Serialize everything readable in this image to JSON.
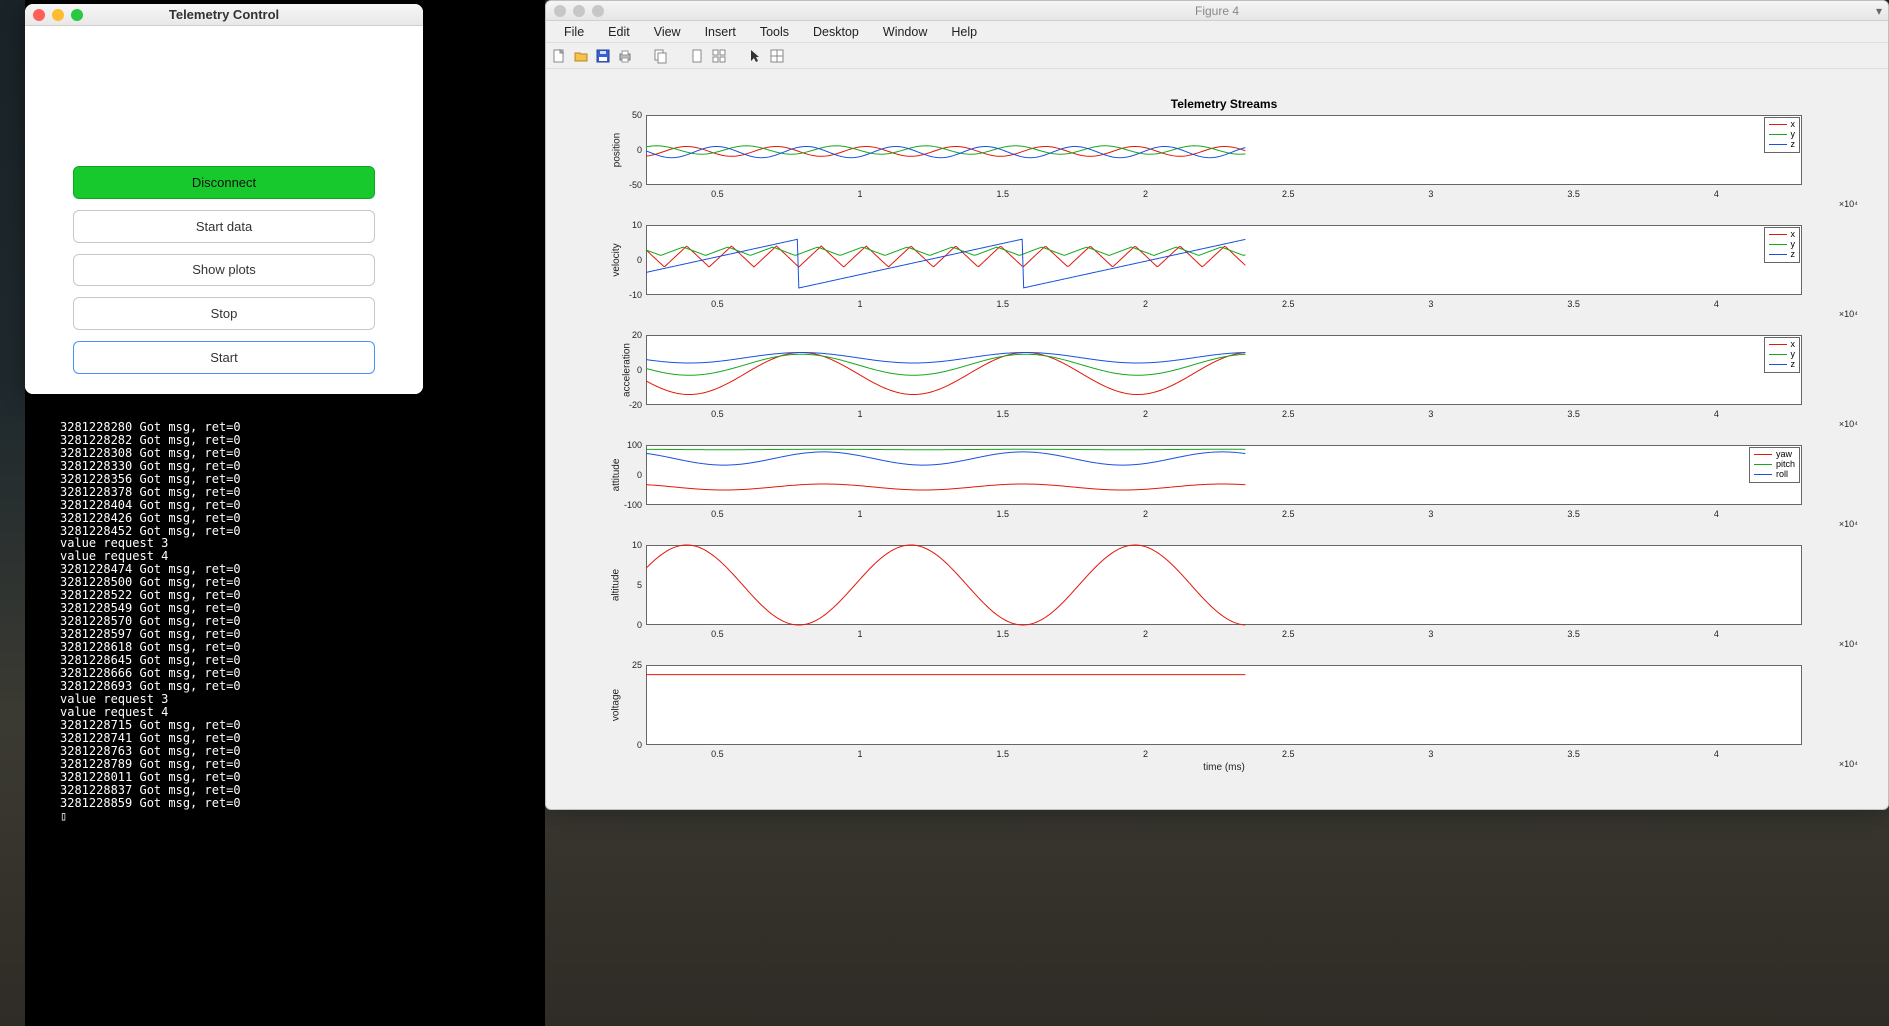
{
  "desktop": {
    "bg_top": "#1a2328",
    "bg_bottom": "#2f2b26"
  },
  "terminal": {
    "lines": [
      "3281228280 Got msg, ret=0",
      "3281228282 Got msg, ret=0",
      "3281228308 Got msg, ret=0",
      "3281228330 Got msg, ret=0",
      "3281228356 Got msg, ret=0",
      "3281228378 Got msg, ret=0",
      "3281228404 Got msg, ret=0",
      "3281228426 Got msg, ret=0",
      "3281228452 Got msg, ret=0",
      "value request 3",
      "value request 4",
      "3281228474 Got msg, ret=0",
      "3281228500 Got msg, ret=0",
      "3281228522 Got msg, ret=0",
      "3281228549 Got msg, ret=0",
      "3281228570 Got msg, ret=0",
      "3281228597 Got msg, ret=0",
      "3281228618 Got msg, ret=0",
      "3281228645 Got msg, ret=0",
      "3281228666 Got msg, ret=0",
      "3281228693 Got msg, ret=0",
      "value request 3",
      "value request 4",
      "3281228715 Got msg, ret=0",
      "3281228741 Got msg, ret=0",
      "3281228763 Got msg, ret=0",
      "3281228789 Got msg, ret=0",
      "3281228011 Got msg, ret=0",
      "3281228837 Got msg, ret=0",
      "3281228859 Got msg, ret=0",
      "▯"
    ]
  },
  "control": {
    "title": "Telemetry Control",
    "traffic": {
      "close": "#ff5f57",
      "min": "#febc2e",
      "max": "#28c840"
    },
    "buttons": {
      "disconnect": "Disconnect",
      "start_data": "Start data",
      "show_plots": "Show plots",
      "stop": "Stop",
      "start": "Start"
    }
  },
  "figure": {
    "title": "Figure 4",
    "menu": [
      "File",
      "Edit",
      "View",
      "Insert",
      "Tools",
      "Desktop",
      "Window",
      "Help"
    ],
    "toolbar_icons": [
      "new",
      "open",
      "save",
      "print",
      "",
      "copy",
      "",
      "page",
      "layout",
      "",
      "cursor",
      "ruler"
    ],
    "plot_title": "Telemetry Streams",
    "x_exponent": "×10⁴",
    "xlabel": "time (ms)",
    "xticks": [
      0.5,
      1,
      1.5,
      2,
      2.5,
      3,
      3.5,
      4
    ],
    "xlim": [
      0.25,
      4.3
    ],
    "data_xmax": 2.35,
    "colors": {
      "x": "#e3170a",
      "y": "#16a81a",
      "z": "#1851e0"
    },
    "subplots": [
      {
        "name": "position",
        "height": 70,
        "ylabel": "position",
        "ylim": [
          -50,
          50
        ],
        "yticks": [
          -50,
          0,
          50
        ],
        "legend": [
          [
            "x",
            "#e3170a"
          ],
          [
            "y",
            "#16a81a"
          ],
          [
            "z",
            "#1851e0"
          ]
        ],
        "series": [
          {
            "color": "#e3170a",
            "type": "sin",
            "amp": 7,
            "freq": 20,
            "phase": 0,
            "offset": -2
          },
          {
            "color": "#16a81a",
            "type": "sin",
            "amp": 6,
            "freq": 20,
            "phase": 2.1,
            "offset": 0
          },
          {
            "color": "#1851e0",
            "type": "sin",
            "amp": 8,
            "freq": 20,
            "phase": 4.2,
            "offset": -3
          }
        ]
      },
      {
        "name": "velocity",
        "height": 70,
        "ylabel": "velocity",
        "ylim": [
          -10,
          10
        ],
        "yticks": [
          -10,
          0,
          10
        ],
        "legend": [
          [
            "x",
            "#e3170a"
          ],
          [
            "y",
            "#16a81a"
          ],
          [
            "z",
            "#1851e0"
          ]
        ],
        "series": [
          {
            "color": "#e3170a",
            "type": "tri",
            "amp": 3,
            "freq": 40,
            "phase": 0,
            "offset": 1
          },
          {
            "color": "#16a81a",
            "type": "tri",
            "amp": 1.2,
            "freq": 40,
            "phase": 0.5,
            "offset": 2.5
          },
          {
            "color": "#1851e0",
            "type": "saw",
            "amp": 7,
            "freq": 8,
            "phase": 0,
            "offset": -1
          }
        ]
      },
      {
        "name": "acceleration",
        "height": 70,
        "ylabel": "acceleration",
        "ylim": [
          -20,
          20
        ],
        "yticks": [
          -20,
          0,
          20
        ],
        "legend": [
          [
            "x",
            "#e3170a"
          ],
          [
            "y",
            "#16a81a"
          ],
          [
            "z",
            "#1851e0"
          ]
        ],
        "series": [
          {
            "color": "#e3170a",
            "type": "sin",
            "amp": 12,
            "freq": 8,
            "phase": 1.5,
            "offset": -2
          },
          {
            "color": "#16a81a",
            "type": "sin",
            "amp": 6,
            "freq": 8,
            "phase": 1.5,
            "offset": 3
          },
          {
            "color": "#1851e0",
            "type": "sin",
            "amp": 3,
            "freq": 8,
            "phase": 1.5,
            "offset": 7
          }
        ]
      },
      {
        "name": "attitude",
        "height": 60,
        "ylabel": "attitude",
        "ylim": [
          -100,
          100
        ],
        "yticks": [
          -100,
          0,
          100
        ],
        "legend": [
          [
            "yaw",
            "#e3170a"
          ],
          [
            "pitch",
            "#16a81a"
          ],
          [
            "roll",
            "#1851e0"
          ]
        ],
        "series": [
          {
            "color": "#e3170a",
            "type": "sin",
            "amp": 10,
            "freq": 9,
            "phase": 0,
            "offset": -40
          },
          {
            "color": "#16a81a",
            "type": "flat",
            "amp": 4,
            "freq": 9,
            "phase": 0,
            "offset": 85
          },
          {
            "color": "#1851e0",
            "type": "sin",
            "amp": 22,
            "freq": 9,
            "phase": 0,
            "offset": 55
          }
        ]
      },
      {
        "name": "altitude",
        "height": 80,
        "ylabel": "altitude",
        "ylim": [
          0,
          10
        ],
        "yticks": [
          0,
          5,
          10
        ],
        "legend": null,
        "series": [
          {
            "color": "#e3170a",
            "type": "sin",
            "amp": 5,
            "freq": 8,
            "phase": -1.57,
            "offset": 5
          }
        ]
      },
      {
        "name": "voltage",
        "height": 80,
        "ylabel": "voltage",
        "ylim": [
          0,
          25
        ],
        "yticks": [
          0,
          25
        ],
        "legend": null,
        "xlabel": true,
        "series": [
          {
            "color": "#e3170a",
            "type": "flat",
            "amp": 0,
            "freq": 0,
            "phase": 0,
            "offset": 22
          }
        ]
      }
    ]
  }
}
